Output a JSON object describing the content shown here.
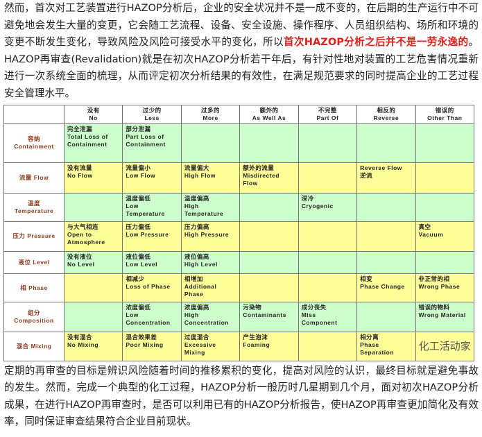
{
  "intro": {
    "part1": "然而，首次对工艺装置进行HAZOP分析后，企业的安全状况并不是一成不变的，在后期的生产运行中不可避免地会发生大量的变更，它会随工艺流程、设备、安全设施、操作程序、人员组织结构、场所和环境的变更不断发生变化，导致风险及风险可接受水平的变化，所以",
    "highlight": "首次HAZOP分析之后并不是一劳永逸的",
    "part2": "。HAZOP再审查(Revalidation)就是在初次HAZOP分析若干年后，有针对性地对装置的工艺危害情况重新进行一次系统全面的梳理，从而评定初次分析结果的有效性，在满足规范要求的同时提高企业的工艺过程安全管理水平。"
  },
  "table": {
    "headers": [
      [
        "没有",
        "No"
      ],
      [
        "过少的",
        "Less"
      ],
      [
        "过多的",
        "More"
      ],
      [
        "额外的",
        "As Well As"
      ],
      [
        "不完整",
        "Part Of"
      ],
      [
        "相反的",
        "Reverse"
      ],
      [
        "错误的",
        "Other Than"
      ]
    ],
    "rows": [
      {
        "label": [
          "容纳",
          "Containment"
        ],
        "color": "green",
        "cells": [
          [
            "完全泄漏",
            "Total Loss of Containment"
          ],
          [
            "部分泄漏",
            "Part Loss of Containment"
          ],
          [],
          [],
          [],
          [],
          []
        ]
      },
      {
        "label": [
          "流量 Flow"
        ],
        "color": "yellow",
        "cells": [
          [
            "没有流量",
            "No Flow"
          ],
          [
            "流量偏小",
            "Low Flow"
          ],
          [
            "流量偏大",
            "High Flow"
          ],
          [
            "额外的流量",
            "Misdirected Flow"
          ],
          [],
          [
            "Reverse Flow",
            "逆流"
          ],
          []
        ]
      },
      {
        "label": [
          "温度",
          "Temperature"
        ],
        "color": "green",
        "cells": [
          [],
          [
            "温度偏低",
            "Low Temperature"
          ],
          [
            "温度偏高",
            "High Temperature"
          ],
          [],
          [
            "深冷",
            "Cryogenic"
          ],
          [],
          []
        ]
      },
      {
        "label": [
          "压力 Pressure"
        ],
        "color": "yellow",
        "cells": [
          [
            "与大气相连",
            "Open to Atmosphere"
          ],
          [
            "压力偏低",
            "Low Pressure"
          ],
          [
            "压力偏高",
            "High Pressure"
          ],
          [],
          [],
          [],
          [
            "真空",
            "Vacuum"
          ]
        ]
      },
      {
        "label": [
          "液位 Level"
        ],
        "color": "green",
        "cells": [
          [
            "没有液位",
            "No Level"
          ],
          [
            "液位偏低",
            "Low Level"
          ],
          [
            "液位偏高",
            "High Level"
          ],
          [],
          [],
          [],
          []
        ]
      },
      {
        "label": [
          "相 Phase"
        ],
        "color": "yellow",
        "cells": [
          [],
          [
            "相减少",
            "Loss of Phase"
          ],
          [
            "相增加",
            "Additional Phase"
          ],
          [],
          [],
          [
            "相变",
            "Phase Change"
          ],
          [
            "非正常的相",
            "Wrong Phase"
          ]
        ]
      },
      {
        "label": [
          "组分",
          "Composition"
        ],
        "color": "green",
        "cells": [
          [],
          [
            "浓度偏低",
            "Low Concentration"
          ],
          [
            "浓度偏高",
            "High Concentration"
          ],
          [
            "污染物",
            "Contaminants"
          ],
          [
            "成分丧失",
            "Miss Component"
          ],
          [],
          [
            "错误的物料",
            "Wrong Material"
          ]
        ]
      },
      {
        "label": [
          "混合 Mixing"
        ],
        "color": "yellow",
        "cells": [
          [
            "没有混合",
            "No Mixing"
          ],
          [
            "混合效果差",
            "Poor Mixing"
          ],
          [
            "过度混合",
            "Excessive Mixing"
          ],
          [
            "产生泡沫",
            "Foaming"
          ],
          [],
          [
            "相分离",
            "Phase Separation"
          ],
          []
        ]
      }
    ],
    "watermark": "化工活动家"
  },
  "outro": "定期的再审查的目标是辨识风险随着时间的推移累积的变化，提高对风险的认识，最终目标就是避免事故的发生。然而，完成一个典型的化工过程，HAZOP分析一般历时几星期到几个月，面对初次HAZOP分析成果，在进行HAZOP再审查时，是否可以利用已有的HAZOP分析报告，使HAZOP再审查更加简化及有效率，同时保证审查结果符合企业目前现状。",
  "colors": {
    "green": "#ccffcc",
    "yellow": "#ffff99",
    "highlight": "#e0201a",
    "row_label": "#8b3a1a"
  }
}
